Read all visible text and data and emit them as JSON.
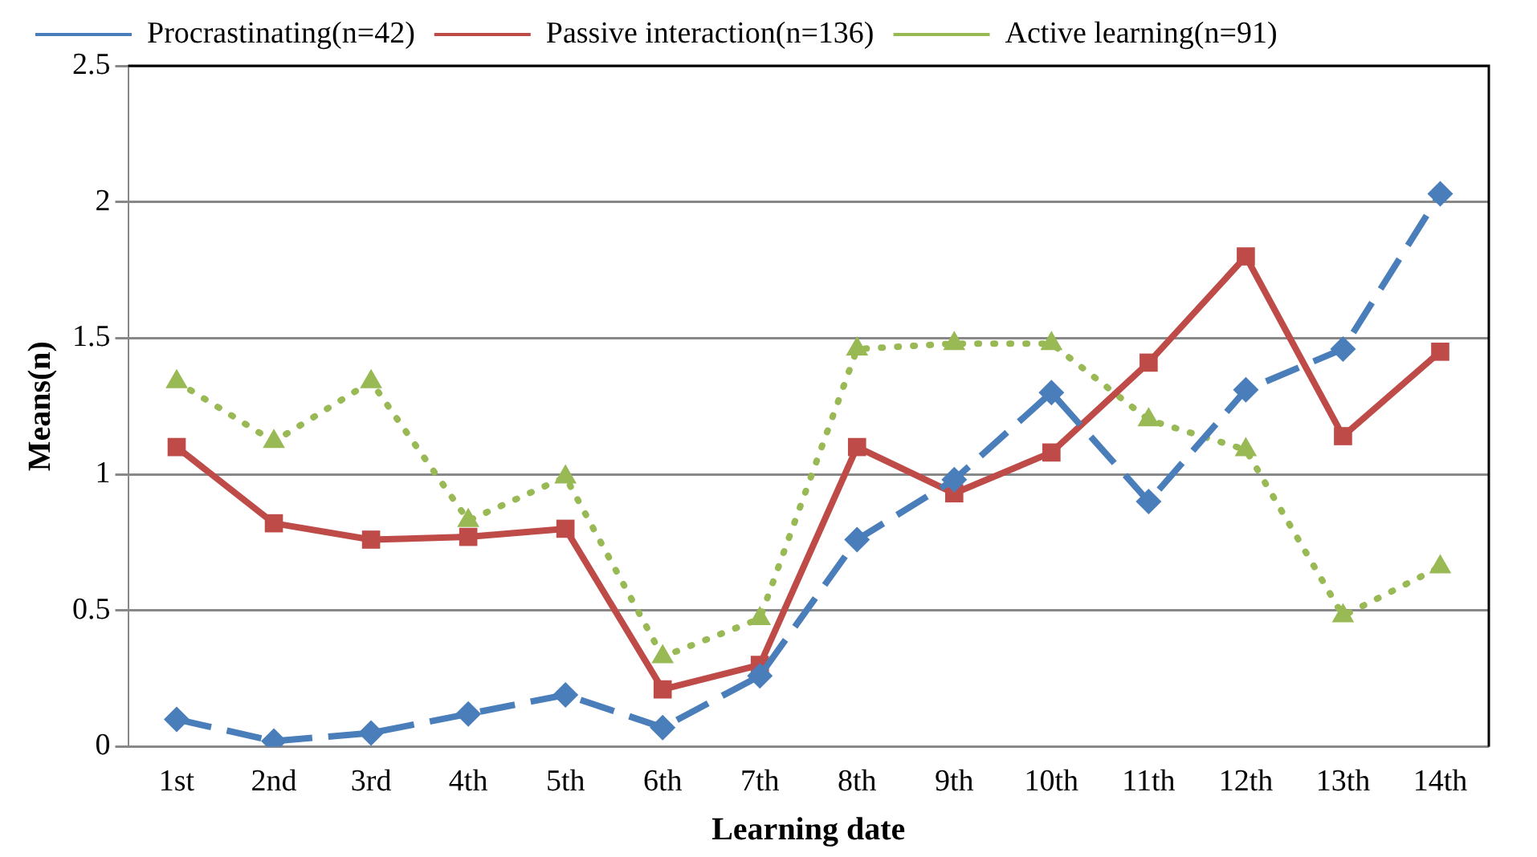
{
  "chart_data": {
    "type": "line",
    "xlabel": "Learning date",
    "ylabel": "Means(n)",
    "categories": [
      "1st",
      "2nd",
      "3rd",
      "4th",
      "5th",
      "6th",
      "7th",
      "8th",
      "9th",
      "10th",
      "11th",
      "12th",
      "13th",
      "14th"
    ],
    "series": [
      {
        "name": "Procrastinating(n=42)",
        "color": "#4a7ebb",
        "marker": "diamond",
        "line_style": "dashed",
        "values": [
          0.1,
          0.02,
          0.05,
          0.12,
          0.19,
          0.07,
          0.26,
          0.76,
          0.98,
          1.3,
          0.9,
          1.31,
          1.46,
          2.03
        ]
      },
      {
        "name": "Passive interaction(n=136)",
        "color": "#be4b48",
        "marker": "square",
        "line_style": "solid",
        "values": [
          1.1,
          0.82,
          0.76,
          0.77,
          0.8,
          0.21,
          0.3,
          1.1,
          0.93,
          1.08,
          1.41,
          1.8,
          1.14,
          1.45
        ]
      },
      {
        "name": "Active learning(n=91)",
        "color": "#98b954",
        "marker": "triangle",
        "line_style": "dotted",
        "values": [
          1.34,
          1.12,
          1.34,
          0.83,
          0.99,
          0.33,
          0.47,
          1.46,
          1.48,
          1.48,
          1.2,
          1.09,
          0.48,
          0.66
        ]
      }
    ],
    "ylim": [
      0,
      2.5
    ],
    "yticks": [
      0,
      0.5,
      1,
      1.5,
      2,
      2.5
    ],
    "grid": "y",
    "legend": "top"
  }
}
